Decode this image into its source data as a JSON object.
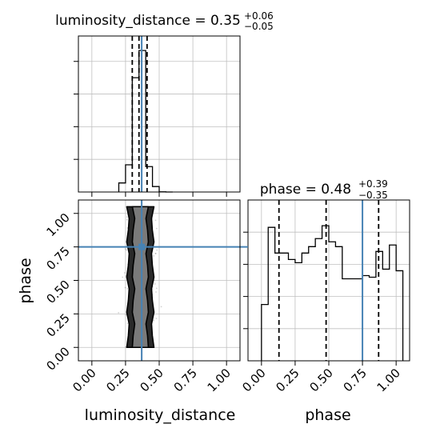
{
  "chart_data": {
    "type": "corner",
    "parameters": [
      "luminosity_distance",
      "phase"
    ],
    "truths": {
      "luminosity_distance": 0.37,
      "phase": 0.75
    },
    "axis_ranges": {
      "luminosity_distance": [
        -0.1,
        1.1
      ],
      "phase": [
        -0.1,
        1.1
      ],
      "hist_density": [
        0,
        8.6
      ]
    },
    "ticks": {
      "luminosity_distance": {
        "values": [
          0,
          0.25,
          0.5,
          0.75,
          1.0
        ],
        "labels": [
          "0.00",
          "0.25",
          "0.50",
          "0.75",
          "1.00"
        ]
      },
      "phase": {
        "values": [
          0,
          0.25,
          0.5,
          0.75,
          1.0
        ],
        "labels": [
          "0.00",
          "0.25",
          "0.50",
          "0.75",
          "1.00"
        ]
      }
    },
    "grid": true,
    "panels": [
      {
        "name": "luminosity_distance",
        "type": "step-histogram",
        "title": {
          "main": "luminosity_distance = 0.35",
          "sup": "+0.06",
          "sub": "−0.05"
        },
        "quantiles": [
          0.3,
          0.35,
          0.41
        ],
        "bin_edges": [
          0.2,
          0.25,
          0.3,
          0.35,
          0.4,
          0.45,
          0.5,
          0.55,
          0.6
        ],
        "values": [
          0.5,
          1.5,
          6.3,
          7.8,
          1.4,
          0.3,
          0.01,
          0
        ],
        "ylim": [
          0,
          8.6
        ]
      },
      {
        "name": "phase",
        "type": "step-histogram",
        "title": {
          "main": "phase = 0.48",
          "sup": "+0.39",
          "sub": "−0.35"
        },
        "quantiles": [
          0.13,
          0.48,
          0.87
        ],
        "bin_edges": [
          0.0,
          0.05,
          0.1,
          0.15,
          0.2,
          0.25,
          0.3,
          0.35,
          0.4,
          0.45,
          0.5,
          0.55,
          0.6,
          0.65,
          0.7,
          0.75,
          0.8,
          0.85,
          0.9,
          0.95,
          1.0,
          1.05
        ],
        "values": [
          0.35,
          0.83,
          0.67,
          0.67,
          0.63,
          0.61,
          0.67,
          0.71,
          0.76,
          0.84,
          0.74,
          0.71,
          0.51,
          0.51,
          0.51,
          0.53,
          0.52,
          0.68,
          0.57,
          0.72,
          0.56
        ],
        "ylim": [
          0,
          1.0
        ]
      },
      {
        "name": "luminosity_distance vs phase",
        "type": "2d-density",
        "x_param": "luminosity_distance",
        "y_param": "phase",
        "sample_center_x": 0.36,
        "sample_spread_x": 0.04,
        "sample_range_y": [
          0.0,
          1.05
        ],
        "contour_levels": [
          "outer",
          "inner"
        ]
      }
    ]
  }
}
